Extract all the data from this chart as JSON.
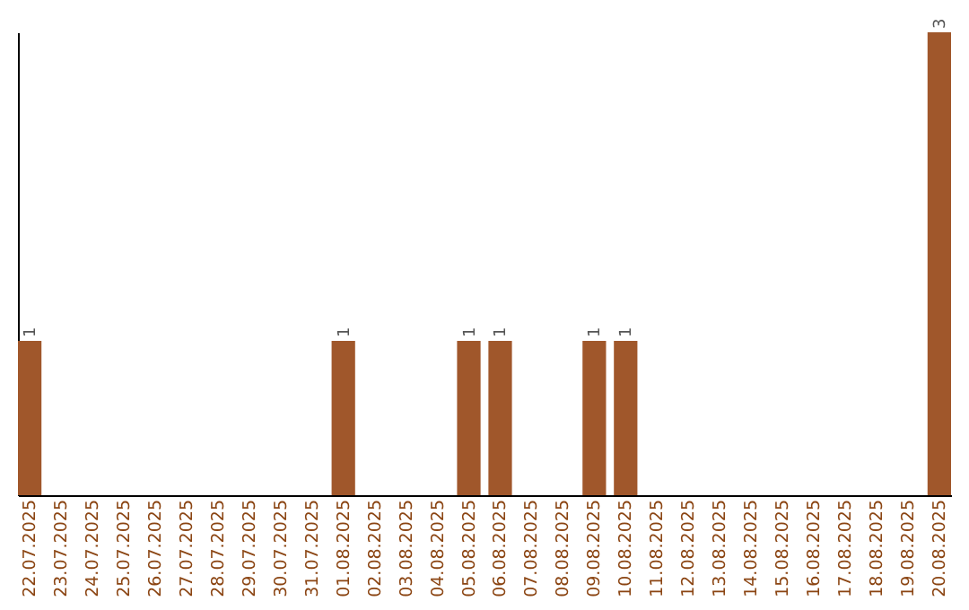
{
  "chart_data": {
    "type": "bar",
    "categories": [
      "22.07.2025",
      "23.07.2025",
      "24.07.2025",
      "25.07.2025",
      "26.07.2025",
      "27.07.2025",
      "28.07.2025",
      "29.07.2025",
      "30.07.2025",
      "31.07.2025",
      "01.08.2025",
      "02.08.2025",
      "03.08.2025",
      "04.08.2025",
      "05.08.2025",
      "06.08.2025",
      "07.08.2025",
      "08.08.2025",
      "09.08.2025",
      "10.08.2025",
      "11.08.2025",
      "12.08.2025",
      "13.08.2025",
      "14.08.2025",
      "15.08.2025",
      "16.08.2025",
      "17.08.2025",
      "18.08.2025",
      "19.08.2025",
      "20.08.2025"
    ],
    "values": [
      1,
      0,
      0,
      0,
      0,
      0,
      0,
      0,
      0,
      0,
      1,
      0,
      0,
      0,
      1,
      1,
      0,
      0,
      1,
      1,
      0,
      0,
      0,
      0,
      0,
      0,
      0,
      0,
      0,
      3
    ],
    "value_labels": [
      "1",
      null,
      null,
      null,
      null,
      null,
      null,
      null,
      null,
      null,
      "1",
      null,
      null,
      null,
      "1",
      "1",
      null,
      null,
      "1",
      "1",
      null,
      null,
      null,
      null,
      null,
      null,
      null,
      null,
      null,
      "3"
    ],
    "color": "#a0572b",
    "tick_labels": "x",
    "grid": false
  }
}
